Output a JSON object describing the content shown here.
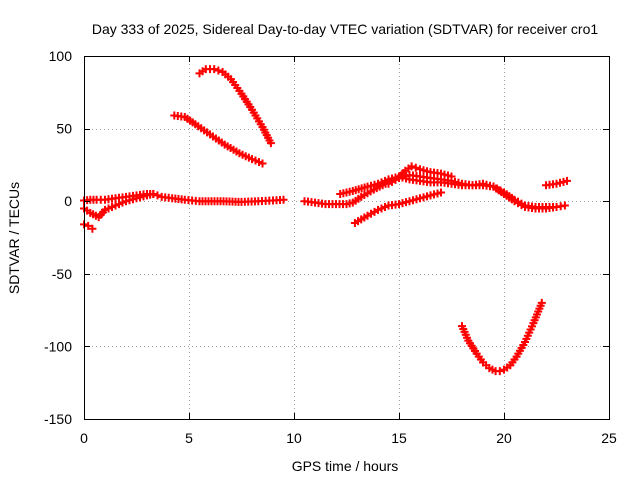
{
  "chart_data": {
    "type": "scatter",
    "title": "Day 333 of 2025, Sidereal Day-to-day VTEC variation (SDTVAR) for receiver cro1",
    "xlabel": "GPS time / hours",
    "ylabel": "SDTVAR / TECUs",
    "xlim": [
      0,
      25
    ],
    "ylim": [
      -150,
      100
    ],
    "xticks": [
      0,
      5,
      10,
      15,
      20,
      25
    ],
    "yticks": [
      -150,
      -100,
      -50,
      0,
      50,
      100
    ],
    "grid": true,
    "marker": "+",
    "color": "#ff0000",
    "series": [
      {
        "name": "s1",
        "x": [
          0.0,
          0.3,
          0.6,
          1.0,
          1.5,
          2.0,
          2.5,
          3.0,
          3.3,
          3.7,
          4.2,
          4.8,
          5.5,
          6.5,
          7.5,
          8.3,
          9.0,
          9.5
        ],
        "y": [
          0.5,
          1,
          1,
          1,
          2,
          3,
          4,
          5,
          5,
          3,
          2,
          1,
          0,
          0,
          -0.5,
          0,
          0.5,
          1
        ]
      },
      {
        "name": "s2",
        "x": [
          0.0,
          0.3,
          0.7,
          1.0,
          1.5,
          2.0,
          2.5,
          3.0,
          3.3
        ],
        "y": [
          -5,
          -8,
          -11,
          -6,
          -3,
          0,
          2,
          4,
          5
        ]
      },
      {
        "name": "s3",
        "x": [
          0.0,
          0.2,
          0.4
        ],
        "y": [
          -16,
          -17,
          -19
        ]
      },
      {
        "name": "s4",
        "x": [
          4.3,
          4.8,
          5.3,
          6.0,
          6.7,
          7.4,
          8.0,
          8.5
        ],
        "y": [
          59,
          58,
          53,
          46,
          39,
          33,
          29,
          26
        ]
      },
      {
        "name": "s5",
        "x": [
          5.5,
          5.8,
          6.2,
          6.6,
          7.0,
          7.5,
          8.0,
          8.5,
          8.9
        ],
        "y": [
          88,
          91,
          91,
          89,
          84,
          74,
          63,
          51,
          40
        ]
      },
      {
        "name": "s6",
        "x": [
          10.5,
          11.0,
          11.5,
          12.0,
          12.5,
          12.8,
          13.2,
          13.8,
          14.5,
          15.0,
          15.5,
          16.0,
          16.5,
          17.0,
          17.5,
          18.0,
          18.5,
          19.0,
          19.5,
          20.0,
          20.5,
          21.0,
          21.5,
          22.0,
          22.5,
          22.9
        ],
        "y": [
          0,
          -1,
          -2,
          -2,
          -2,
          -1,
          3,
          8,
          13,
          16,
          18,
          17,
          16,
          15,
          14,
          12,
          11,
          11,
          10,
          6,
          1,
          -3,
          -4,
          -4,
          -4,
          -3
        ]
      },
      {
        "name": "s7",
        "x": [
          12.2,
          12.8,
          13.5,
          14.0,
          14.5,
          15.0,
          15.5,
          16.0,
          16.5,
          17.0,
          17.5,
          18.0,
          18.5,
          19.0,
          19.5,
          20.0,
          20.5,
          21.0,
          21.5,
          22.0,
          22.5
        ],
        "y": [
          5,
          7,
          10,
          12,
          15,
          17,
          15,
          14,
          13,
          13,
          12,
          11,
          11,
          12,
          10,
          5,
          0,
          -4,
          -5,
          -5,
          -4
        ]
      },
      {
        "name": "s8",
        "x": [
          14.5,
          15.0,
          15.3,
          15.6,
          16.0,
          16.5,
          17.0,
          17.5
        ],
        "y": [
          12,
          16,
          21,
          24,
          22,
          20,
          19,
          17
        ]
      },
      {
        "name": "s9",
        "x": [
          12.9,
          13.5,
          14.0,
          14.5,
          15.0,
          15.5,
          16.0,
          16.5,
          17.0
        ],
        "y": [
          -15,
          -10,
          -6,
          -3,
          -2,
          0,
          2,
          4,
          6
        ]
      },
      {
        "name": "s10",
        "x": [
          18.0,
          18.3,
          18.7,
          19.0,
          19.3,
          19.6,
          19.8,
          20.0,
          20.3,
          20.6,
          21.0,
          21.4,
          21.8
        ],
        "y": [
          -86,
          -96,
          -105,
          -111,
          -115,
          -117,
          -117,
          -116,
          -113,
          -107,
          -97,
          -84,
          -70
        ]
      },
      {
        "name": "s11",
        "x": [
          22.0,
          22.5,
          23.0
        ],
        "y": [
          11,
          12,
          14
        ]
      }
    ]
  }
}
